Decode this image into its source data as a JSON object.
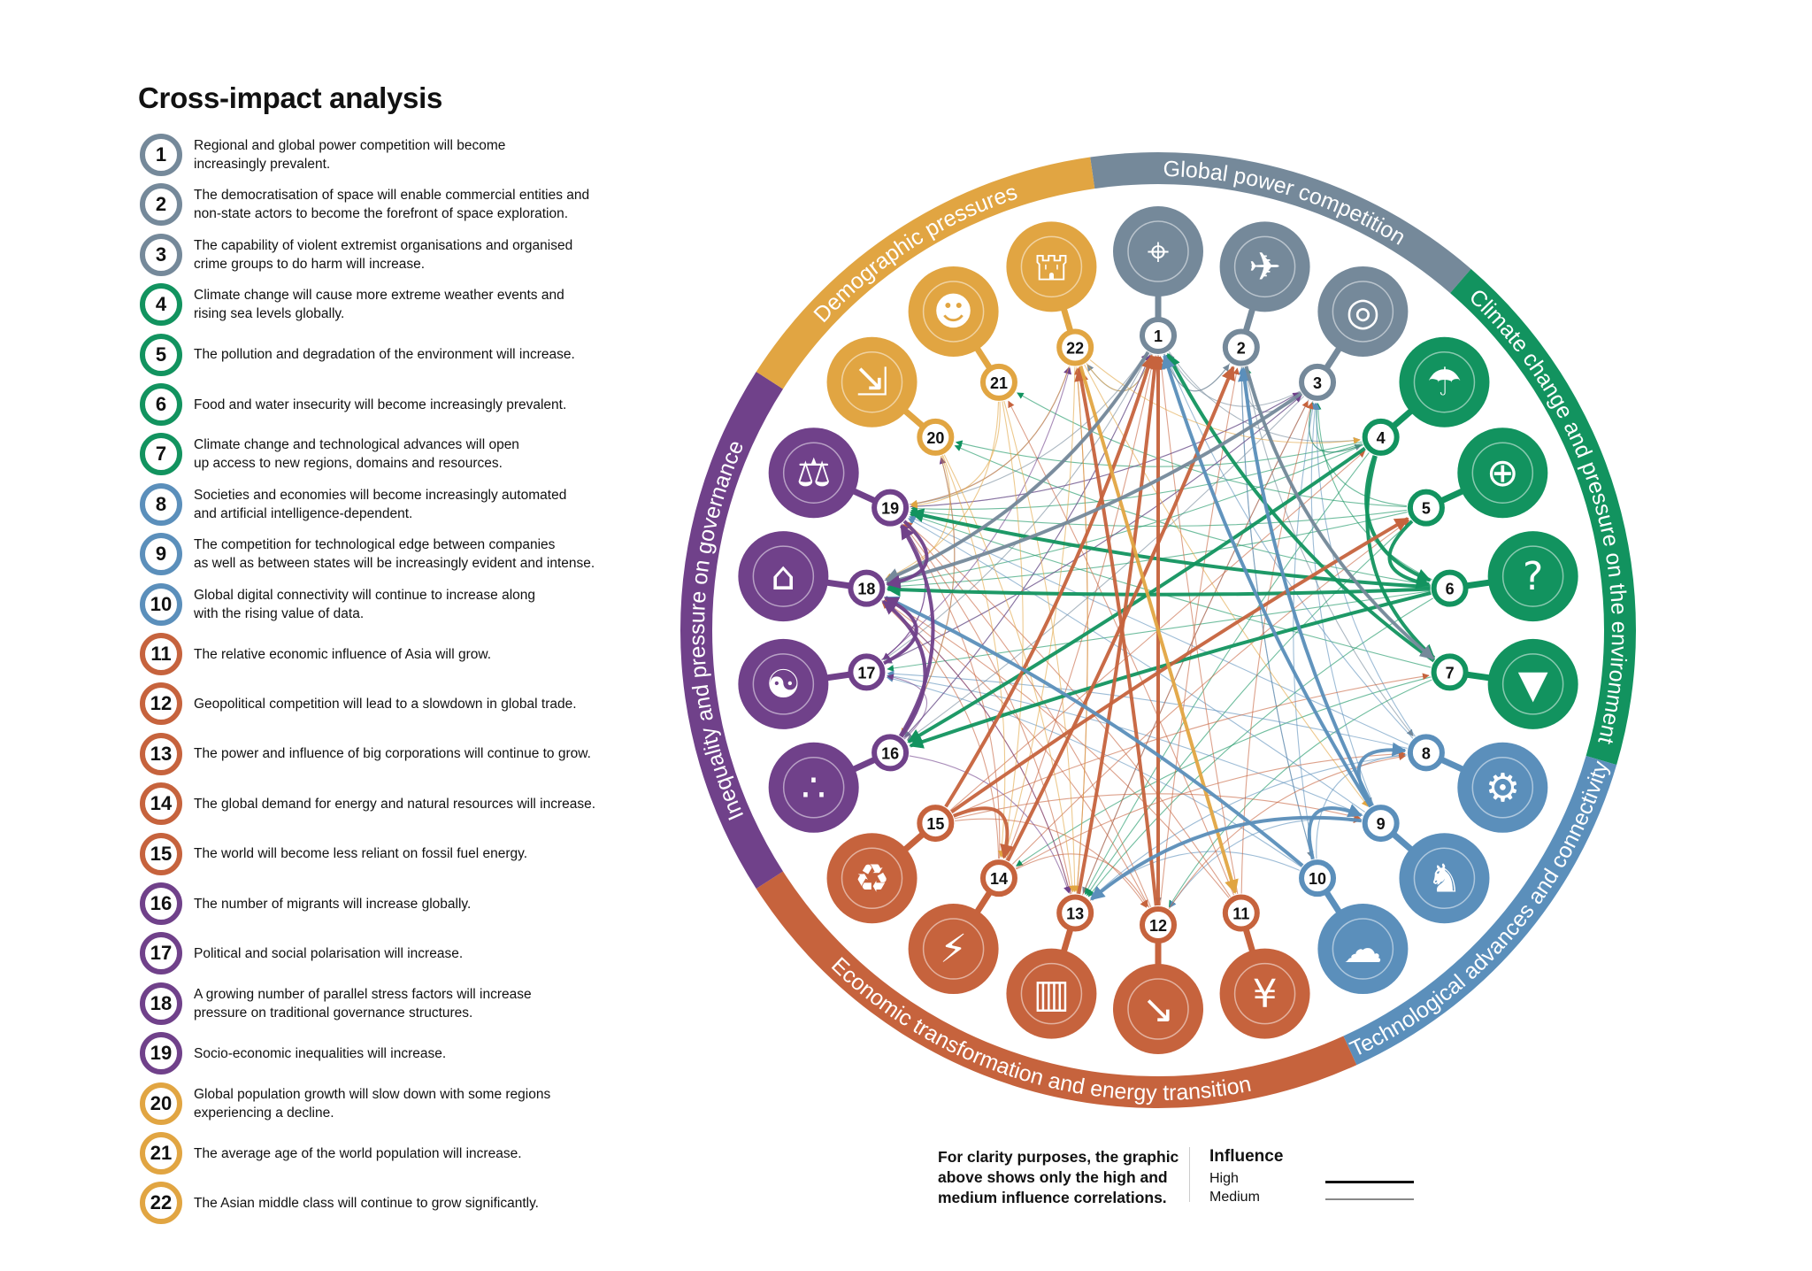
{
  "title": "Cross-impact analysis",
  "groups": [
    {
      "id": "power",
      "label": "Global power competition",
      "color": "#75899a",
      "nodes": [
        1,
        2,
        3
      ]
    },
    {
      "id": "climate",
      "label": "Climate change and pressure on the environment",
      "color": "#12935f",
      "nodes": [
        4,
        5,
        6,
        7
      ]
    },
    {
      "id": "tech",
      "label": "Technological advances and connectivity",
      "color": "#5b8fbb",
      "nodes": [
        8,
        9,
        10
      ]
    },
    {
      "id": "economic",
      "label": "Economic transformation and energy transition",
      "color": "#c6633d",
      "nodes": [
        11,
        12,
        13,
        14,
        15
      ]
    },
    {
      "id": "inequality",
      "label": "Inequality and pressure on governance",
      "color": "#70418a",
      "nodes": [
        16,
        17,
        18,
        19
      ]
    },
    {
      "id": "demographic",
      "label": "Demographic pressures",
      "color": "#e1a542",
      "nodes": [
        20,
        21,
        22
      ]
    }
  ],
  "items": [
    {
      "num": "1",
      "group": "power",
      "icon": "target-icon",
      "glyph": "⌖",
      "text": "Regional and global power competition will become\nincreasingly prevalent."
    },
    {
      "num": "2",
      "group": "power",
      "icon": "rocket-icon",
      "glyph": "✈",
      "text": "The democratisation of space will enable commercial entities and\nnon-state actors to become the forefront of space exploration."
    },
    {
      "num": "3",
      "group": "power",
      "icon": "fingerprint-icon",
      "glyph": "◎",
      "text": "The capability of violent extremist organisations and organised\ncrime groups to do harm will increase."
    },
    {
      "num": "4",
      "group": "climate",
      "icon": "extreme-weather-icon",
      "glyph": "☂",
      "text": "Climate change will cause more extreme weather events and\nrising sea levels globally."
    },
    {
      "num": "5",
      "group": "climate",
      "icon": "polluted-globe-icon",
      "glyph": "⊕",
      "text": "The pollution and degradation of the environment will increase."
    },
    {
      "num": "6",
      "group": "climate",
      "icon": "food-water-question-icon",
      "glyph": "?",
      "text": "Food and water insecurity will become increasingly prevalent."
    },
    {
      "num": "7",
      "group": "climate",
      "icon": "iceberg-icon",
      "glyph": "▼",
      "text": "Climate change and technological advances will open\nup access to new regions, domains and resources."
    },
    {
      "num": "8",
      "group": "tech",
      "icon": "robot-icon",
      "glyph": "⚙",
      "text": "Societies and economies will become increasingly automated\nand artificial intelligence-dependent."
    },
    {
      "num": "9",
      "group": "tech",
      "icon": "chess-circuit-icon",
      "glyph": "♞",
      "text": "The competition for technological edge between companies\nas well as between states will be increasingly evident and intense."
    },
    {
      "num": "10",
      "group": "tech",
      "icon": "cloud-globe-icon",
      "glyph": "☁",
      "text": "Global digital connectivity will continue to increase along\nwith the rising value of data."
    },
    {
      "num": "11",
      "group": "economic",
      "icon": "yen-coin-icon",
      "glyph": "¥",
      "text": "The relative economic influence of Asia will grow."
    },
    {
      "num": "12",
      "group": "economic",
      "icon": "declining-chart-icon",
      "glyph": "↘",
      "text": "Geopolitical competition will lead to a slowdown in global trade."
    },
    {
      "num": "13",
      "group": "economic",
      "icon": "buildings-icon",
      "glyph": "▥",
      "text": "The power and influence of big corporations will continue to grow."
    },
    {
      "num": "14",
      "group": "economic",
      "icon": "energy-hands-icon",
      "glyph": "⚡",
      "text": "The global demand for energy and natural resources will increase."
    },
    {
      "num": "15",
      "group": "economic",
      "icon": "green-plug-icon",
      "glyph": "♻",
      "text": "The world will become less reliant on fossil fuel energy."
    },
    {
      "num": "16",
      "group": "inequality",
      "icon": "footprints-icon",
      "glyph": "∴",
      "text": "The number of migrants will increase globally."
    },
    {
      "num": "17",
      "group": "inequality",
      "icon": "opposing-faces-icon",
      "glyph": "☯",
      "text": "Political and social polarisation will increase."
    },
    {
      "num": "18",
      "group": "inequality",
      "icon": "capitol-lightning-icon",
      "glyph": "⌂",
      "text": "A growing number of parallel stress factors will increase\npressure on traditional governance structures."
    },
    {
      "num": "19",
      "group": "inequality",
      "icon": "scales-icon",
      "glyph": "⚖",
      "text": "Socio-economic inequalities will increase."
    },
    {
      "num": "20",
      "group": "demographic",
      "icon": "population-decline-icon",
      "glyph": "⇲",
      "text": "Global population growth will slow down with some regions\nexperiencing a decline."
    },
    {
      "num": "21",
      "group": "demographic",
      "icon": "elderly-couple-icon",
      "glyph": "☻",
      "text": "The average age of the world population will increase."
    },
    {
      "num": "22",
      "group": "demographic",
      "icon": "pagoda-icon",
      "glyph": "⛫",
      "text": "The Asian middle class will continue to grow significantly."
    }
  ],
  "edges": {
    "high": [
      [
        6,
        18
      ],
      [
        6,
        19
      ],
      [
        4,
        16
      ],
      [
        6,
        16
      ],
      [
        4,
        6
      ],
      [
        5,
        6
      ],
      [
        4,
        7
      ],
      [
        7,
        1
      ],
      [
        15,
        1
      ],
      [
        13,
        1
      ],
      [
        12,
        1
      ],
      [
        14,
        2
      ],
      [
        15,
        5
      ],
      [
        12,
        22
      ],
      [
        22,
        11
      ],
      [
        9,
        1
      ],
      [
        9,
        2
      ],
      [
        10,
        18
      ],
      [
        9,
        13
      ],
      [
        9,
        8
      ],
      [
        10,
        9
      ],
      [
        3,
        18
      ],
      [
        1,
        18
      ],
      [
        2,
        7
      ],
      [
        19,
        18
      ],
      [
        17,
        18
      ],
      [
        16,
        18
      ],
      [
        16,
        19
      ],
      [
        15,
        14
      ]
    ],
    "medium": [
      [
        1,
        2
      ],
      [
        2,
        1
      ],
      [
        1,
        22
      ],
      [
        22,
        1
      ],
      [
        2,
        3
      ],
      [
        3,
        1
      ],
      [
        3,
        4
      ],
      [
        1,
        4
      ],
      [
        1,
        9
      ],
      [
        1,
        16
      ],
      [
        1,
        17
      ],
      [
        1,
        19
      ],
      [
        1,
        12
      ],
      [
        2,
        9
      ],
      [
        2,
        10
      ],
      [
        2,
        8
      ],
      [
        3,
        16
      ],
      [
        3,
        17
      ],
      [
        3,
        19
      ],
      [
        3,
        13
      ],
      [
        4,
        18
      ],
      [
        4,
        19
      ],
      [
        4,
        13
      ],
      [
        4,
        20
      ],
      [
        4,
        3
      ],
      [
        5,
        18
      ],
      [
        5,
        13
      ],
      [
        5,
        19
      ],
      [
        5,
        21
      ],
      [
        5,
        3
      ],
      [
        6,
        17
      ],
      [
        6,
        13
      ],
      [
        6,
        20
      ],
      [
        6,
        3
      ],
      [
        7,
        12
      ],
      [
        7,
        14
      ],
      [
        7,
        19
      ],
      [
        7,
        2
      ],
      [
        8,
        13
      ],
      [
        8,
        19
      ],
      [
        8,
        17
      ],
      [
        8,
        3
      ],
      [
        8,
        1
      ],
      [
        9,
        3
      ],
      [
        9,
        17
      ],
      [
        9,
        12
      ],
      [
        9,
        19
      ],
      [
        10,
        13
      ],
      [
        10,
        17
      ],
      [
        10,
        3
      ],
      [
        10,
        2
      ],
      [
        10,
        8
      ],
      [
        11,
        1
      ],
      [
        11,
        19
      ],
      [
        11,
        18
      ],
      [
        11,
        21
      ],
      [
        11,
        3
      ],
      [
        12,
        18
      ],
      [
        12,
        19
      ],
      [
        12,
        2
      ],
      [
        12,
        8
      ],
      [
        13,
        19
      ],
      [
        13,
        18
      ],
      [
        13,
        22
      ],
      [
        13,
        9
      ],
      [
        13,
        3
      ],
      [
        14,
        5
      ],
      [
        14,
        1
      ],
      [
        14,
        19
      ],
      [
        14,
        18
      ],
      [
        14,
        12
      ],
      [
        14,
        8
      ],
      [
        15,
        4
      ],
      [
        15,
        7
      ],
      [
        15,
        12
      ],
      [
        15,
        9
      ],
      [
        16,
        17
      ],
      [
        16,
        13
      ],
      [
        16,
        20
      ],
      [
        16,
        1
      ],
      [
        17,
        19
      ],
      [
        17,
        3
      ],
      [
        17,
        22
      ],
      [
        18,
        1
      ],
      [
        18,
        17
      ],
      [
        18,
        13
      ],
      [
        19,
        17
      ],
      [
        19,
        22
      ],
      [
        19,
        3
      ],
      [
        20,
        18
      ],
      [
        20,
        13
      ],
      [
        20,
        14
      ],
      [
        20,
        16
      ],
      [
        21,
        13
      ],
      [
        21,
        19
      ],
      [
        21,
        18
      ],
      [
        21,
        14
      ],
      [
        22,
        13
      ],
      [
        22,
        14
      ],
      [
        22,
        19
      ],
      [
        22,
        4
      ],
      [
        22,
        9
      ]
    ]
  },
  "legend": {
    "note": "For clarity purposes, the graphic\nabove shows only the high and\nmedium influence correlations.",
    "title": "Influence",
    "high": "High",
    "medium": "Medium"
  }
}
